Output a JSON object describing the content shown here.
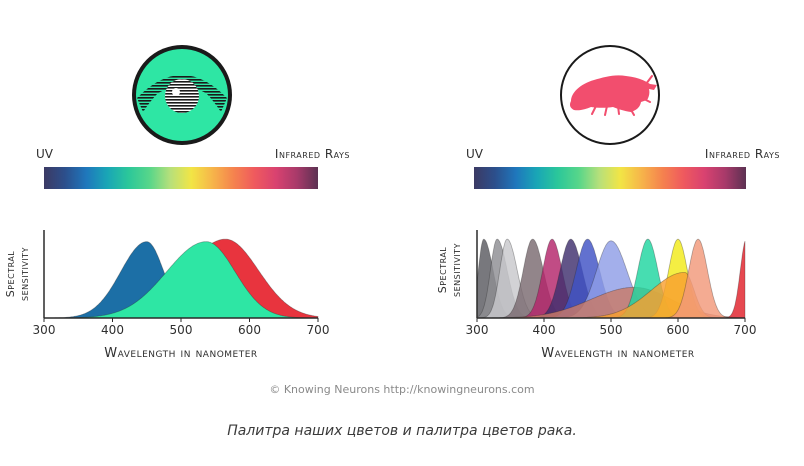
{
  "colors": {
    "spectrum": [
      "#3c3a64",
      "#2c4f8c",
      "#1f77bc",
      "#19a6b6",
      "#2bc79a",
      "#57d68a",
      "#b8e07a",
      "#f2e545",
      "#f6b54a",
      "#f5834e",
      "#ef5a5e",
      "#d94270",
      "#a83a6a",
      "#5c3152"
    ],
    "human_blue": "#1c6fa6",
    "human_green": "#2ee6a4",
    "human_red": "#e8343e",
    "eye_fill": "#2ee6a4",
    "shrimp_fill": "#f24e6e"
  },
  "icons": {
    "human": "eye-icon",
    "shrimp": "mantis-shrimp-icon"
  },
  "credit": "© Knowing Neurons http://knowingneurons.com",
  "caption": "Палитра наших цветов и палитра цветов рака.",
  "chart_data": [
    {
      "type": "area",
      "subject": "human",
      "spectrum_left_label": "UV",
      "spectrum_right_label": "Infrared Rays",
      "xlabel": "Wavelength in nanometer",
      "ylabel": [
        "Spectral",
        "sensitivity"
      ],
      "xlim": [
        300,
        700
      ],
      "xticks": [
        300,
        400,
        500,
        600,
        700
      ],
      "ylim": [
        0,
        1
      ],
      "grid": false,
      "series": [
        {
          "color": "#1c6fa6",
          "peak": 450,
          "sigma_left": 38,
          "sigma_right": 25,
          "amplitude": 0.92
        },
        {
          "color": "#e8343e",
          "peak": 565,
          "sigma_left": 60,
          "sigma_right": 48,
          "amplitude": 0.95
        },
        {
          "color": "#2ee6a4",
          "peak": 537,
          "sigma_left": 58,
          "sigma_right": 42,
          "amplitude": 0.92
        }
      ]
    },
    {
      "type": "area",
      "subject": "mantis shrimp",
      "spectrum_left_label": "UV",
      "spectrum_right_label": "Infrared Rays",
      "xlabel": "Wavelength in nanometer",
      "ylabel": [
        "Spectral",
        "sensitivity"
      ],
      "xlim": [
        300,
        700
      ],
      "xticks": [
        300,
        400,
        500,
        600,
        700
      ],
      "ylim": [
        0,
        1
      ],
      "grid": false,
      "series": [
        {
          "color": "#5a5a60",
          "peak": 310,
          "sigma_left": 8,
          "sigma_right": 14,
          "amplitude": 0.95
        },
        {
          "color": "#8d8d93",
          "peak": 330,
          "sigma_left": 10,
          "sigma_right": 15,
          "amplitude": 0.95
        },
        {
          "color": "#c8c8cc",
          "peak": 345,
          "sigma_left": 11,
          "sigma_right": 15,
          "amplitude": 0.95
        },
        {
          "color": "#7a6a70",
          "peak": 383,
          "sigma_left": 14,
          "sigma_right": 16,
          "amplitude": 0.95
        },
        {
          "color": "#b3246a",
          "peak": 412,
          "sigma_left": 14,
          "sigma_right": 15,
          "amplitude": 0.95
        },
        {
          "color": "#3f2f6e",
          "peak": 440,
          "sigma_left": 16,
          "sigma_right": 17,
          "amplitude": 0.95
        },
        {
          "color": "#3f52c4",
          "peak": 465,
          "sigma_left": 17,
          "sigma_right": 18,
          "amplitude": 0.95
        },
        {
          "color": "#8f9ee6",
          "peak": 500,
          "sigma_left": 22,
          "sigma_right": 24,
          "amplitude": 0.93
        },
        {
          "color": "#c97a66",
          "peak": 535,
          "sigma_left": 65,
          "sigma_right": 55,
          "amplitude": 0.37
        },
        {
          "color": "#1fd6a0",
          "peak": 555,
          "sigma_left": 15,
          "sigma_right": 15,
          "amplitude": 0.95
        },
        {
          "color": "#f2ea1a",
          "peak": 600,
          "sigma_left": 14,
          "sigma_right": 14,
          "amplitude": 0.95
        },
        {
          "color": "#f9a030",
          "peak": 610,
          "sigma_left": 50,
          "sigma_right": 14,
          "amplitude": 0.55
        },
        {
          "color": "#f2987a",
          "peak": 630,
          "sigma_left": 14,
          "sigma_right": 14,
          "amplitude": 0.95
        },
        {
          "color": "#e0202a",
          "peak": 702,
          "sigma_left": 9,
          "sigma_right": 20,
          "amplitude": 0.95
        }
      ]
    }
  ]
}
